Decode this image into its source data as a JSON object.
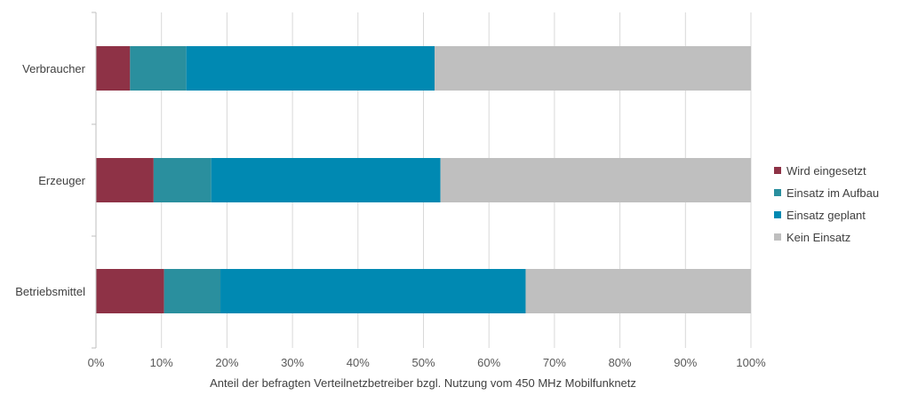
{
  "chart_data": {
    "type": "bar",
    "orientation": "horizontal",
    "stacked": true,
    "categories": [
      "Verbraucher",
      "Erzeuger",
      "Betriebsmittel"
    ],
    "series": [
      {
        "name": "Wird eingesetzt",
        "color": "#8e3246",
        "values": [
          5.2,
          8.8,
          10.4
        ]
      },
      {
        "name": "Einsatz im Aufbau",
        "color": "#2a8f9e",
        "values": [
          8.6,
          8.8,
          8.6
        ]
      },
      {
        "name": "Einsatz geplant",
        "color": "#0089b2",
        "values": [
          37.9,
          35.0,
          46.6
        ]
      },
      {
        "name": "Kein Einsatz",
        "color": "#bfbfbf",
        "values": [
          48.3,
          47.4,
          34.4
        ]
      }
    ],
    "xlim": [
      0,
      100
    ],
    "xticks": [
      "0%",
      "10%",
      "20%",
      "30%",
      "40%",
      "50%",
      "60%",
      "70%",
      "80%",
      "90%",
      "100%"
    ],
    "xlabel": "Anteil der befragten Verteilnetzbetreiber bzgl. Nutzung vom 450 MHz Mobilfunknetz",
    "ylabel": "",
    "grid": true,
    "legend": "right"
  }
}
